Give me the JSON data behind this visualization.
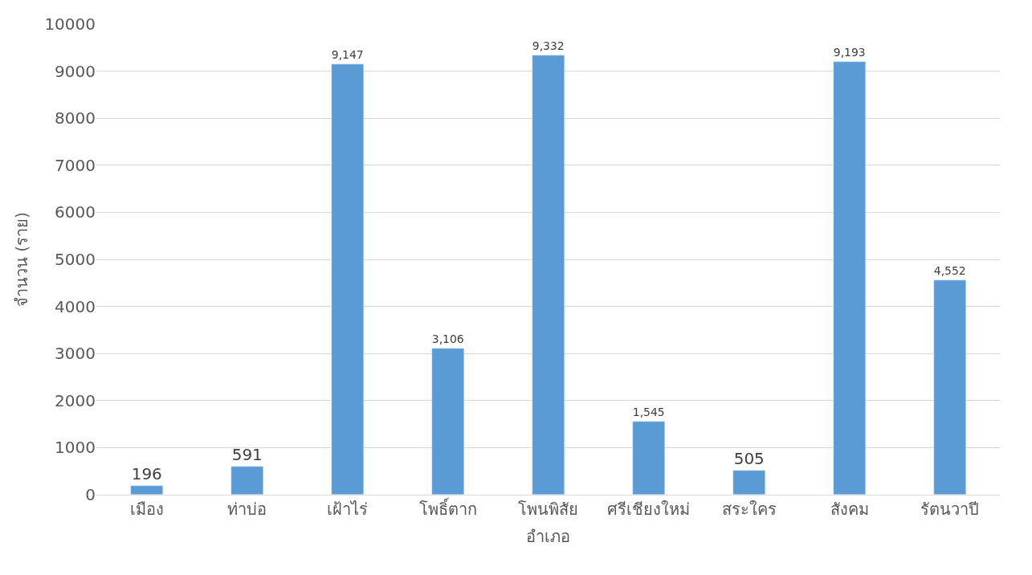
{
  "chart_data": {
    "type": "bar",
    "xlabel": "อำเภอ",
    "ylabel": "จำนวน (ราย)",
    "categories": [
      "เมือง",
      "ท่าบ่อ",
      "เฝ้าไร่",
      "โพธิ์ตาก",
      "โพนพิสัย",
      "ศรีเชียงใหม่",
      "สระใคร",
      "สังคม",
      "รัตนวาปี"
    ],
    "values": [
      196,
      591,
      9147,
      3106,
      9332,
      1545,
      505,
      9193,
      4552
    ],
    "value_labels": [
      "196",
      "591",
      "9,147",
      "3,106",
      "9,332",
      "1,545",
      "505",
      "9,193",
      "4,552"
    ],
    "color": "#5b9bd5",
    "ylim": [
      0,
      10000
    ],
    "yticks": [
      0,
      1000,
      2000,
      3000,
      4000,
      5000,
      6000,
      7000,
      8000,
      9000,
      10000
    ],
    "grid": "y",
    "legend": false
  }
}
